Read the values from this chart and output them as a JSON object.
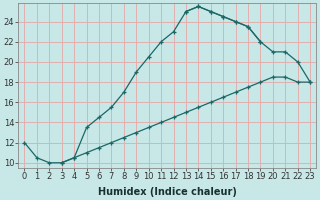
{
  "xlabel": "Humidex (Indice chaleur)",
  "bg_color": "#c8e8e8",
  "grid_color": "#e0b0b0",
  "line_color": "#1a6868",
  "xlim": [
    -0.5,
    23.5
  ],
  "ylim": [
    9.5,
    25.8
  ],
  "xticks": [
    0,
    1,
    2,
    3,
    4,
    5,
    6,
    7,
    8,
    9,
    10,
    11,
    12,
    13,
    14,
    15,
    16,
    17,
    18,
    19,
    20,
    21,
    22,
    23
  ],
  "yticks": [
    10,
    12,
    14,
    16,
    18,
    20,
    22,
    24
  ],
  "line1_x": [
    0,
    1,
    2,
    3,
    4,
    5,
    6,
    7,
    8,
    9,
    10,
    11,
    12,
    13,
    14,
    15,
    16,
    17,
    18,
    19
  ],
  "line1_y": [
    12,
    10.5,
    10,
    10,
    10.5,
    13.5,
    14.5,
    15.5,
    17.0,
    19.0,
    20.5,
    22.0,
    23.0,
    25.0,
    25.5,
    25.0,
    24.5,
    24.0,
    23.5,
    22.0
  ],
  "line2_x": [
    3,
    4,
    5,
    6,
    7,
    8,
    9,
    10,
    11,
    12,
    13,
    14,
    15,
    16,
    17,
    18,
    19,
    20,
    21,
    22,
    23
  ],
  "line2_y": [
    10,
    10.5,
    11.0,
    11.5,
    12.0,
    12.5,
    13.0,
    13.5,
    14.0,
    14.5,
    15.0,
    15.5,
    16.0,
    16.5,
    17.0,
    17.5,
    18.0,
    18.5,
    18.5,
    18.0,
    18.0
  ],
  "line3_x": [
    13,
    14,
    15,
    16,
    17,
    18,
    19,
    20,
    21,
    22,
    23
  ],
  "line3_y": [
    25.0,
    25.5,
    25.0,
    24.5,
    24.0,
    23.5,
    22.0,
    21.0,
    21.0,
    20.0,
    18.0
  ],
  "tick_fontsize": 6,
  "xlabel_fontsize": 7
}
